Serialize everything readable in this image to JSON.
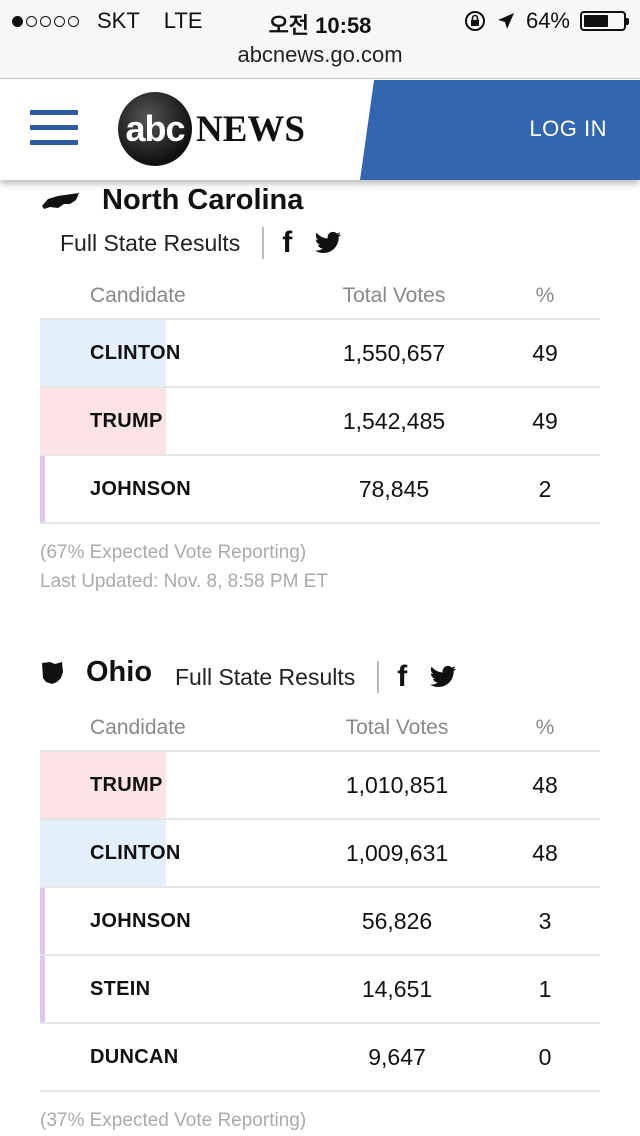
{
  "status_bar": {
    "carrier": "SKT",
    "network": "LTE",
    "time": "오전 10:58",
    "battery": "64%",
    "battery_level": 0.64,
    "signal_bars": 1
  },
  "url_bar": {
    "url": "abcnews.go.com"
  },
  "header": {
    "logo_abc": "abc",
    "logo_news": "NEWS",
    "login_label": "LOG IN",
    "brand_blue": "#3366b0"
  },
  "columns": {
    "candidate": "Candidate",
    "total_votes": "Total Votes",
    "percent": "%"
  },
  "states": [
    {
      "name": "North Carolina",
      "link_label": "Full State Results",
      "results": [
        {
          "candidate": "CLINTON",
          "votes": "1,550,657",
          "pct": "49",
          "color": "#e3f0fb"
        },
        {
          "candidate": "TRUMP",
          "votes": "1,542,485",
          "pct": "49",
          "color": "#fce3e6"
        },
        {
          "candidate": "JOHNSON",
          "votes": "78,845",
          "pct": "2",
          "color": "#dcc8ee"
        }
      ],
      "reporting": "(67% Expected Vote Reporting)",
      "updated": "Last Updated: Nov. 8, 8:58 PM ET"
    },
    {
      "name": "Ohio",
      "link_label": "Full State Results",
      "results": [
        {
          "candidate": "TRUMP",
          "votes": "1,010,851",
          "pct": "48",
          "color": "#fce3e6"
        },
        {
          "candidate": "CLINTON",
          "votes": "1,009,631",
          "pct": "48",
          "color": "#e3f0fb"
        },
        {
          "candidate": "JOHNSON",
          "votes": "56,826",
          "pct": "3",
          "color": "#dcc8ee"
        },
        {
          "candidate": "STEIN",
          "votes": "14,651",
          "pct": "1",
          "color": "#dcc8ee"
        },
        {
          "candidate": "DUNCAN",
          "votes": "9,647",
          "pct": "0",
          "color": ""
        }
      ],
      "reporting": "(37% Expected Vote Reporting)"
    }
  ]
}
